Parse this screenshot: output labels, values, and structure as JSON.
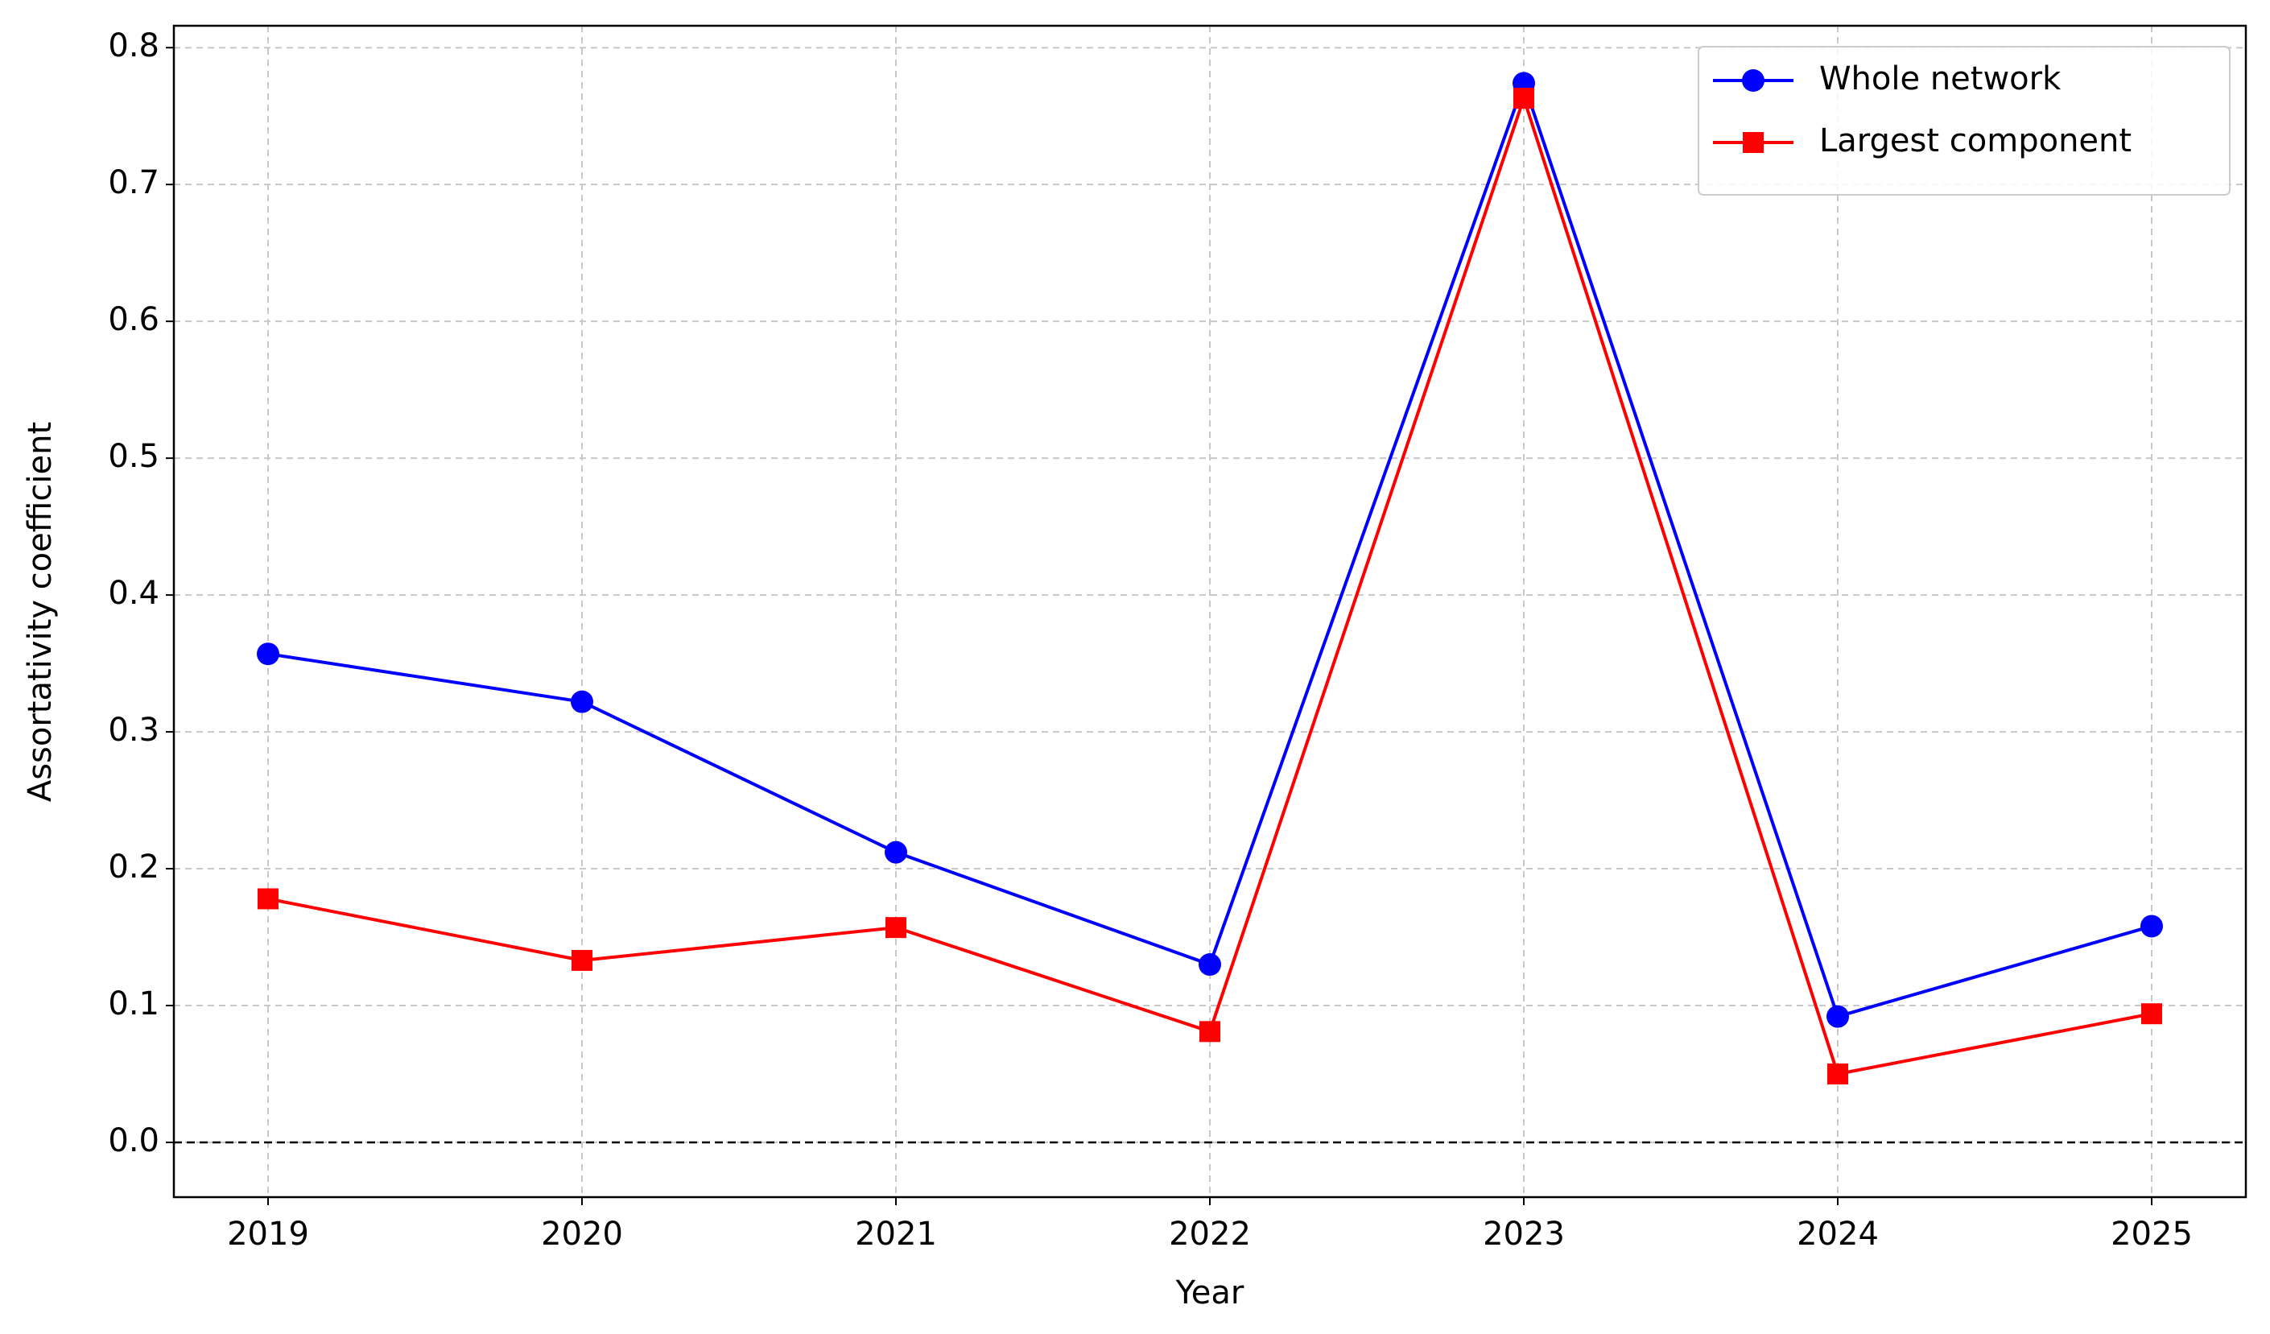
{
  "chart_data": {
    "type": "line",
    "x_label": "Year",
    "y_label": "Assortativity coefficient",
    "x": [
      2019,
      2020,
      2021,
      2022,
      2023,
      2024,
      2025
    ],
    "series": [
      {
        "name": "Whole network",
        "color": "#0000ff",
        "marker": "circle",
        "values": [
          0.357,
          0.322,
          0.212,
          0.13,
          0.774,
          0.092,
          0.158
        ]
      },
      {
        "name": "Largest component",
        "color": "#ff0000",
        "marker": "square",
        "values": [
          0.178,
          0.133,
          0.157,
          0.081,
          0.763,
          0.05,
          0.094
        ]
      }
    ],
    "xlim": [
      2018.7,
      2025.3
    ],
    "xticks": [
      2019,
      2020,
      2021,
      2022,
      2023,
      2024,
      2025
    ],
    "ylim": [
      -0.04,
      0.816
    ],
    "yticks": [
      {
        "value": 0,
        "label": "0.0"
      },
      0.1,
      0.2,
      0.3,
      0.4,
      0.5,
      0.6,
      0.7,
      0.8
    ],
    "reference_line": 0,
    "grid": true,
    "legend": "upper right"
  }
}
